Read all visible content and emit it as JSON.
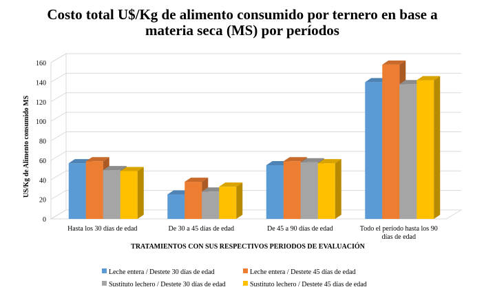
{
  "chart_data": {
    "type": "bar",
    "title_lines": [
      "Costo total U$/Kg de alimento consumido  por ternero en base a",
      "materia seca (MS) por períodos"
    ],
    "xlabel": "TRATAMIENTOS  CON SUS RESPECTIVOS PERIODOS  DE EVALUACIÓN",
    "ylabel": "US/Kg de Alimento consumido MS",
    "ylim": [
      0,
      160
    ],
    "yticks": [
      "0",
      "20",
      "40",
      "60",
      "80",
      "100",
      "120",
      "140",
      "160"
    ],
    "grid": true,
    "legend_position": "bottom",
    "categories": [
      [
        "Hasta los 30 días  de edad"
      ],
      [
        "De 30 a 45 días de edad"
      ],
      [
        "De 45 a 90 días de edad"
      ],
      [
        "Todo el período hasta los 90",
        "días de edad"
      ]
    ],
    "series": [
      {
        "name": "Leche entera / Destete 30 días de edad",
        "color": "#5b9bd5",
        "values": [
          57,
          25,
          55,
          140
        ]
      },
      {
        "name": "Leche entera / Destete 45 días de edad",
        "color": "#ed7d31",
        "values": [
          59,
          38,
          59,
          158
        ]
      },
      {
        "name": "Sustituto lechero / Destete 30 días de edad",
        "color": "#a5a5a5",
        "values": [
          50,
          28,
          58,
          138
        ]
      },
      {
        "name": "Sustituto lechero / Destete 45 días de edad",
        "color": "#ffc000",
        "values": [
          49,
          33,
          57,
          142
        ]
      }
    ]
  }
}
